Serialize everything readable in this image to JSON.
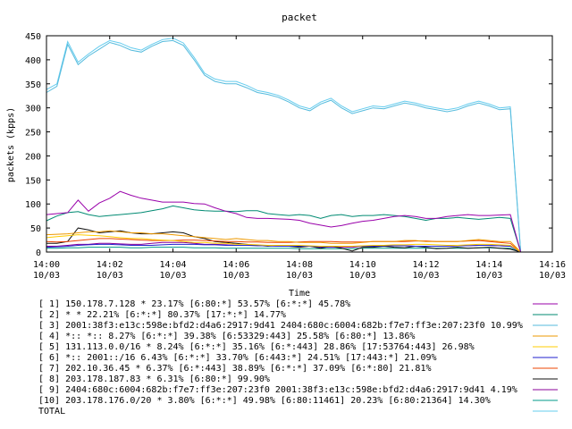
{
  "chart_data": {
    "type": "line",
    "title": "packet",
    "xlabel": "Time",
    "ylabel": "packets (kpps)",
    "ylim": [
      0,
      450
    ],
    "y_ticks": [
      0,
      50,
      100,
      150,
      200,
      250,
      300,
      350,
      400,
      450
    ],
    "xlim": [
      0,
      16
    ],
    "x_ticks": [
      {
        "x": 0,
        "time": "14:00",
        "date": "10/03"
      },
      {
        "x": 2,
        "time": "14:02",
        "date": "10/03"
      },
      {
        "x": 4,
        "time": "14:04",
        "date": "10/03"
      },
      {
        "x": 6,
        "time": "14:06",
        "date": "10/03"
      },
      {
        "x": 8,
        "time": "14:08",
        "date": "10/03"
      },
      {
        "x": 10,
        "time": "14:10",
        "date": "10/03"
      },
      {
        "x": 12,
        "time": "14:12",
        "date": "10/03"
      },
      {
        "x": 14,
        "time": "14:14",
        "date": "10/03"
      },
      {
        "x": 16,
        "time": "14:16",
        "date": "10/03"
      }
    ],
    "grid": false,
    "legend_placement": "bottom",
    "x": [
      0,
      0.33,
      0.67,
      1,
      1.33,
      1.67,
      2,
      2.33,
      2.67,
      3,
      3.33,
      3.67,
      4,
      4.33,
      4.67,
      5,
      5.33,
      5.67,
      6,
      6.33,
      6.67,
      7,
      7.33,
      7.67,
      8,
      8.33,
      8.67,
      9,
      9.33,
      9.67,
      10,
      10.33,
      10.67,
      11,
      11.33,
      11.67,
      12,
      12.33,
      12.67,
      13,
      13.33,
      13.67,
      14,
      14.33,
      14.67,
      15
    ],
    "series": [
      {
        "name": "[ 1] 150.178.7.128 * 23.17%  [6:80:*] 53.57% [6:*:*] 45.78%",
        "color": "#9900aa",
        "values": [
          78,
          80,
          82,
          108,
          85,
          102,
          112,
          126,
          118,
          112,
          108,
          104,
          104,
          104,
          101,
          100,
          92,
          85,
          80,
          72,
          70,
          70,
          69,
          68,
          66,
          60,
          56,
          52,
          55,
          60,
          64,
          66,
          70,
          74,
          76,
          74,
          70,
          70,
          74,
          76,
          78,
          76,
          76,
          77,
          78,
          0
        ]
      },
      {
        "name": "[ 2] * * 22.21%  [6:*:*] 80.37% [17:*:*] 14.77%",
        "color": "#008a72",
        "values": [
          65,
          75,
          82,
          84,
          78,
          74,
          76,
          78,
          80,
          82,
          86,
          90,
          96,
          92,
          88,
          86,
          85,
          85,
          84,
          86,
          86,
          80,
          78,
          76,
          78,
          76,
          70,
          76,
          78,
          74,
          76,
          76,
          78,
          76,
          74,
          70,
          66,
          70,
          70,
          72,
          70,
          68,
          70,
          72,
          70,
          0
        ]
      },
      {
        "name": "[ 3] 2001:38f3:e13c:598e:bfd2:d4a6:2917:9d41 2404:680c:6004:682b:f7e7:ff3e:207:23f0 10.99%",
        "color": "#55bbdd",
        "values": [
          332,
          345,
          432,
          390,
          408,
          422,
          436,
          430,
          420,
          416,
          428,
          438,
          440,
          430,
          400,
          368,
          355,
          350,
          350,
          342,
          332,
          328,
          322,
          312,
          300,
          294,
          308,
          316,
          300,
          288,
          294,
          300,
          298,
          304,
          310,
          306,
          300,
          296,
          292,
          296,
          304,
          310,
          304,
          296,
          298,
          0
        ]
      },
      {
        "name": "[ 4] *:: *:: 8.27%  [6:*:*] 39.38% [6:53329:443] 25.58% [6:80:*] 13.86%",
        "color": "#ee9900",
        "values": [
          36,
          37,
          38,
          40,
          42,
          42,
          44,
          42,
          40,
          40,
          38,
          38,
          36,
          34,
          32,
          30,
          28,
          26,
          28,
          26,
          24,
          24,
          22,
          22,
          20,
          20,
          20,
          18,
          18,
          18,
          20,
          22,
          22,
          22,
          24,
          24,
          22,
          22,
          22,
          22,
          24,
          26,
          24,
          22,
          22,
          0
        ]
      },
      {
        "name": "[ 5] 131.113.0.0/16 * 8.24%  [6:*:*] 35.16% [6:*:443] 28.86% [17:53764:443] 26.98%",
        "color": "#ffcc00",
        "values": [
          30,
          32,
          34,
          36,
          35,
          34,
          32,
          30,
          28,
          28,
          26,
          25,
          24,
          22,
          20,
          20,
          18,
          18,
          16,
          16,
          15,
          14,
          14,
          14,
          14,
          13,
          12,
          12,
          12,
          12,
          13,
          14,
          14,
          15,
          15,
          16,
          16,
          15,
          14,
          14,
          15,
          16,
          16,
          15,
          14,
          0
        ]
      },
      {
        "name": "[ 6] *:: 2001::/16 6.43%  [6:*:*] 33.70% [6:443:*] 24.51% [17:443:*] 21.09%",
        "color": "#2222cc",
        "values": [
          10,
          11,
          12,
          14,
          15,
          16,
          16,
          15,
          14,
          14,
          14,
          15,
          16,
          16,
          16,
          15,
          15,
          14,
          14,
          14,
          13,
          13,
          12,
          12,
          12,
          12,
          11,
          11,
          12,
          12,
          12,
          12,
          13,
          13,
          13,
          12,
          12,
          12,
          12,
          13,
          13,
          14,
          14,
          13,
          12,
          0
        ]
      },
      {
        "name": "[ 7] 202.10.36.45 * 6.37%  [6:*:443] 38.89% [6:*:*] 37.09% [6:*:80] 21.81%",
        "color": "#ee4400",
        "values": [
          22,
          21,
          22,
          24,
          26,
          28,
          28,
          27,
          26,
          25,
          24,
          24,
          24,
          25,
          25,
          24,
          23,
          22,
          22,
          21,
          21,
          20,
          20,
          20,
          21,
          22,
          22,
          22,
          21,
          21,
          21,
          22,
          22,
          22,
          22,
          23,
          23,
          22,
          22,
          22,
          23,
          24,
          22,
          20,
          18,
          0
        ]
      },
      {
        "name": "[ 8] 203.178.187.83 * 6.31%  [6:80:*] 99.90%",
        "color": "#111111",
        "values": [
          18,
          18,
          22,
          50,
          46,
          40,
          42,
          44,
          40,
          38,
          38,
          40,
          42,
          40,
          32,
          28,
          22,
          20,
          18,
          16,
          14,
          12,
          14,
          12,
          10,
          12,
          8,
          12,
          8,
          2,
          10,
          10,
          12,
          10,
          9,
          12,
          10,
          7,
          8,
          10,
          8,
          9,
          10,
          8,
          6,
          0
        ]
      },
      {
        "name": "[ 9] 2404:680c:6004:682b:f7e7:ff3e:207:23f0 2001:38f3:e13c:598e:bfd2:d4a6:2917:9d41 4.19%",
        "color": "#880099",
        "values": [
          12,
          12,
          14,
          16,
          16,
          18,
          18,
          17,
          16,
          16,
          18,
          20,
          20,
          20,
          18,
          16,
          16,
          15,
          14,
          14,
          14,
          13,
          12,
          12,
          12,
          12,
          10,
          10,
          10,
          10,
          12,
          12,
          12,
          13,
          13,
          12,
          12,
          12,
          12,
          13,
          13,
          14,
          14,
          13,
          12,
          0
        ]
      },
      {
        "name": "[10] 203.178.176.0/20 * 3.80%  [6:*:*] 49.98% [6:80:11461] 20.23% [6:80:21364] 14.30%",
        "color": "#009988",
        "values": [
          8,
          8,
          9,
          9,
          10,
          10,
          10,
          10,
          9,
          9,
          10,
          10,
          10,
          10,
          9,
          9,
          9,
          8,
          8,
          8,
          8,
          8,
          8,
          8,
          7,
          7,
          7,
          7,
          7,
          7,
          8,
          8,
          8,
          8,
          8,
          8,
          8,
          8,
          8,
          8,
          8,
          9,
          9,
          8,
          8,
          0
        ]
      },
      {
        "name": "TOTAL",
        "color": "#66ccee",
        "values": [
          338,
          350,
          438,
          395,
          412,
          428,
          440,
          435,
          425,
          420,
          432,
          442,
          445,
          435,
          405,
          372,
          360,
          355,
          355,
          347,
          336,
          332,
          326,
          316,
          304,
          298,
          312,
          320,
          304,
          292,
          298,
          304,
          302,
          308,
          314,
          310,
          304,
          300,
          296,
          300,
          308,
          314,
          308,
          300,
          302,
          0
        ]
      }
    ]
  }
}
